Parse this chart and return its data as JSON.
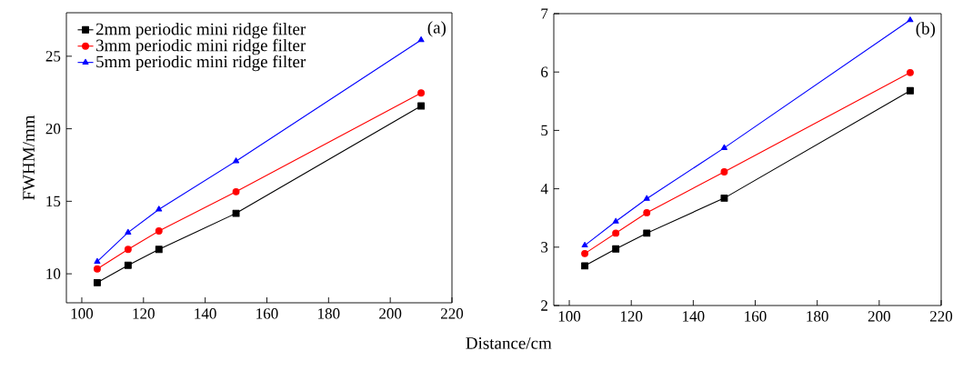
{
  "chart_data": [
    {
      "type": "line",
      "ylabel": "FWHM/mm",
      "xlabel": "Distance/cm",
      "x": [
        105,
        115,
        125,
        150,
        210
      ],
      "xlim": [
        95,
        220
      ],
      "xticks": [
        100,
        120,
        140,
        160,
        180,
        200,
        220
      ],
      "ylim": [
        8,
        28
      ],
      "yticks": [
        10,
        15,
        20,
        25
      ],
      "legend": "top left",
      "grid": false,
      "annotations": [
        "(a)"
      ],
      "series": [
        {
          "name": "2mm periodic mini ridge filter",
          "color": "#000000",
          "marker": "square",
          "values": [
            9.39,
            10.59,
            11.68,
            14.17,
            21.57
          ]
        },
        {
          "name": "3mm periodic mini ridge filter",
          "color": "#ff0000",
          "marker": "circle",
          "values": [
            10.34,
            11.68,
            12.95,
            15.66,
            22.47
          ]
        },
        {
          "name": "5mm periodic mini ridge filter",
          "color": "#0000ff",
          "marker": "triangle",
          "values": [
            10.84,
            12.85,
            14.44,
            17.77,
            26.12
          ]
        }
      ]
    },
    {
      "type": "line",
      "x": [
        105,
        115,
        125,
        150,
        210
      ],
      "xlim": [
        95,
        220
      ],
      "xticks": [
        100,
        120,
        140,
        160,
        180,
        200,
        220
      ],
      "ylim": [
        2,
        7
      ],
      "yticks": [
        2,
        3,
        4,
        5,
        6,
        7
      ],
      "grid": false,
      "annotations": [
        "(b)"
      ],
      "series": [
        {
          "color": "#000000",
          "marker": "square",
          "values": [
            2.68,
            2.97,
            3.24,
            3.84,
            5.68
          ]
        },
        {
          "color": "#ff0000",
          "marker": "circle",
          "values": [
            2.89,
            3.24,
            3.59,
            4.29,
            5.99
          ]
        },
        {
          "color": "#0000ff",
          "marker": "triangle",
          "values": [
            3.03,
            3.44,
            3.83,
            4.7,
            6.89
          ]
        }
      ]
    }
  ]
}
